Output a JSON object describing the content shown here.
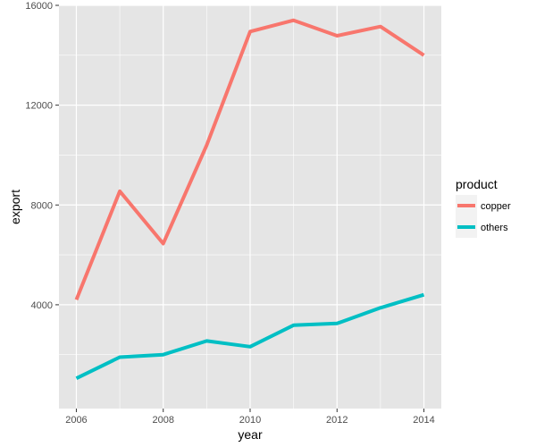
{
  "chart_data": {
    "type": "line",
    "x": [
      2006,
      2007,
      2008,
      2009,
      2010,
      2011,
      2012,
      2013,
      2014
    ],
    "series": [
      {
        "name": "copper",
        "color": "#F8766D",
        "values": [
          4200,
          8550,
          6450,
          10400,
          14950,
          15400,
          14780,
          15150,
          14000
        ]
      },
      {
        "name": "others",
        "color": "#00BFC4",
        "values": [
          1050,
          1900,
          2000,
          2550,
          2320,
          3180,
          3250,
          3880,
          4400
        ]
      }
    ],
    "xlabel": "year",
    "ylabel": "export",
    "xlim": [
      2005.6,
      2014.4
    ],
    "ylim": [
      -160,
      16000
    ],
    "x_ticks": [
      2006,
      2008,
      2010,
      2012,
      2014
    ],
    "y_ticks": [
      4000,
      8000,
      12000,
      16000
    ],
    "legend": {
      "title": "product",
      "position": "right"
    },
    "grid": true,
    "panel_background": "#E5E5E5",
    "grid_color": "#FFFFFF"
  }
}
